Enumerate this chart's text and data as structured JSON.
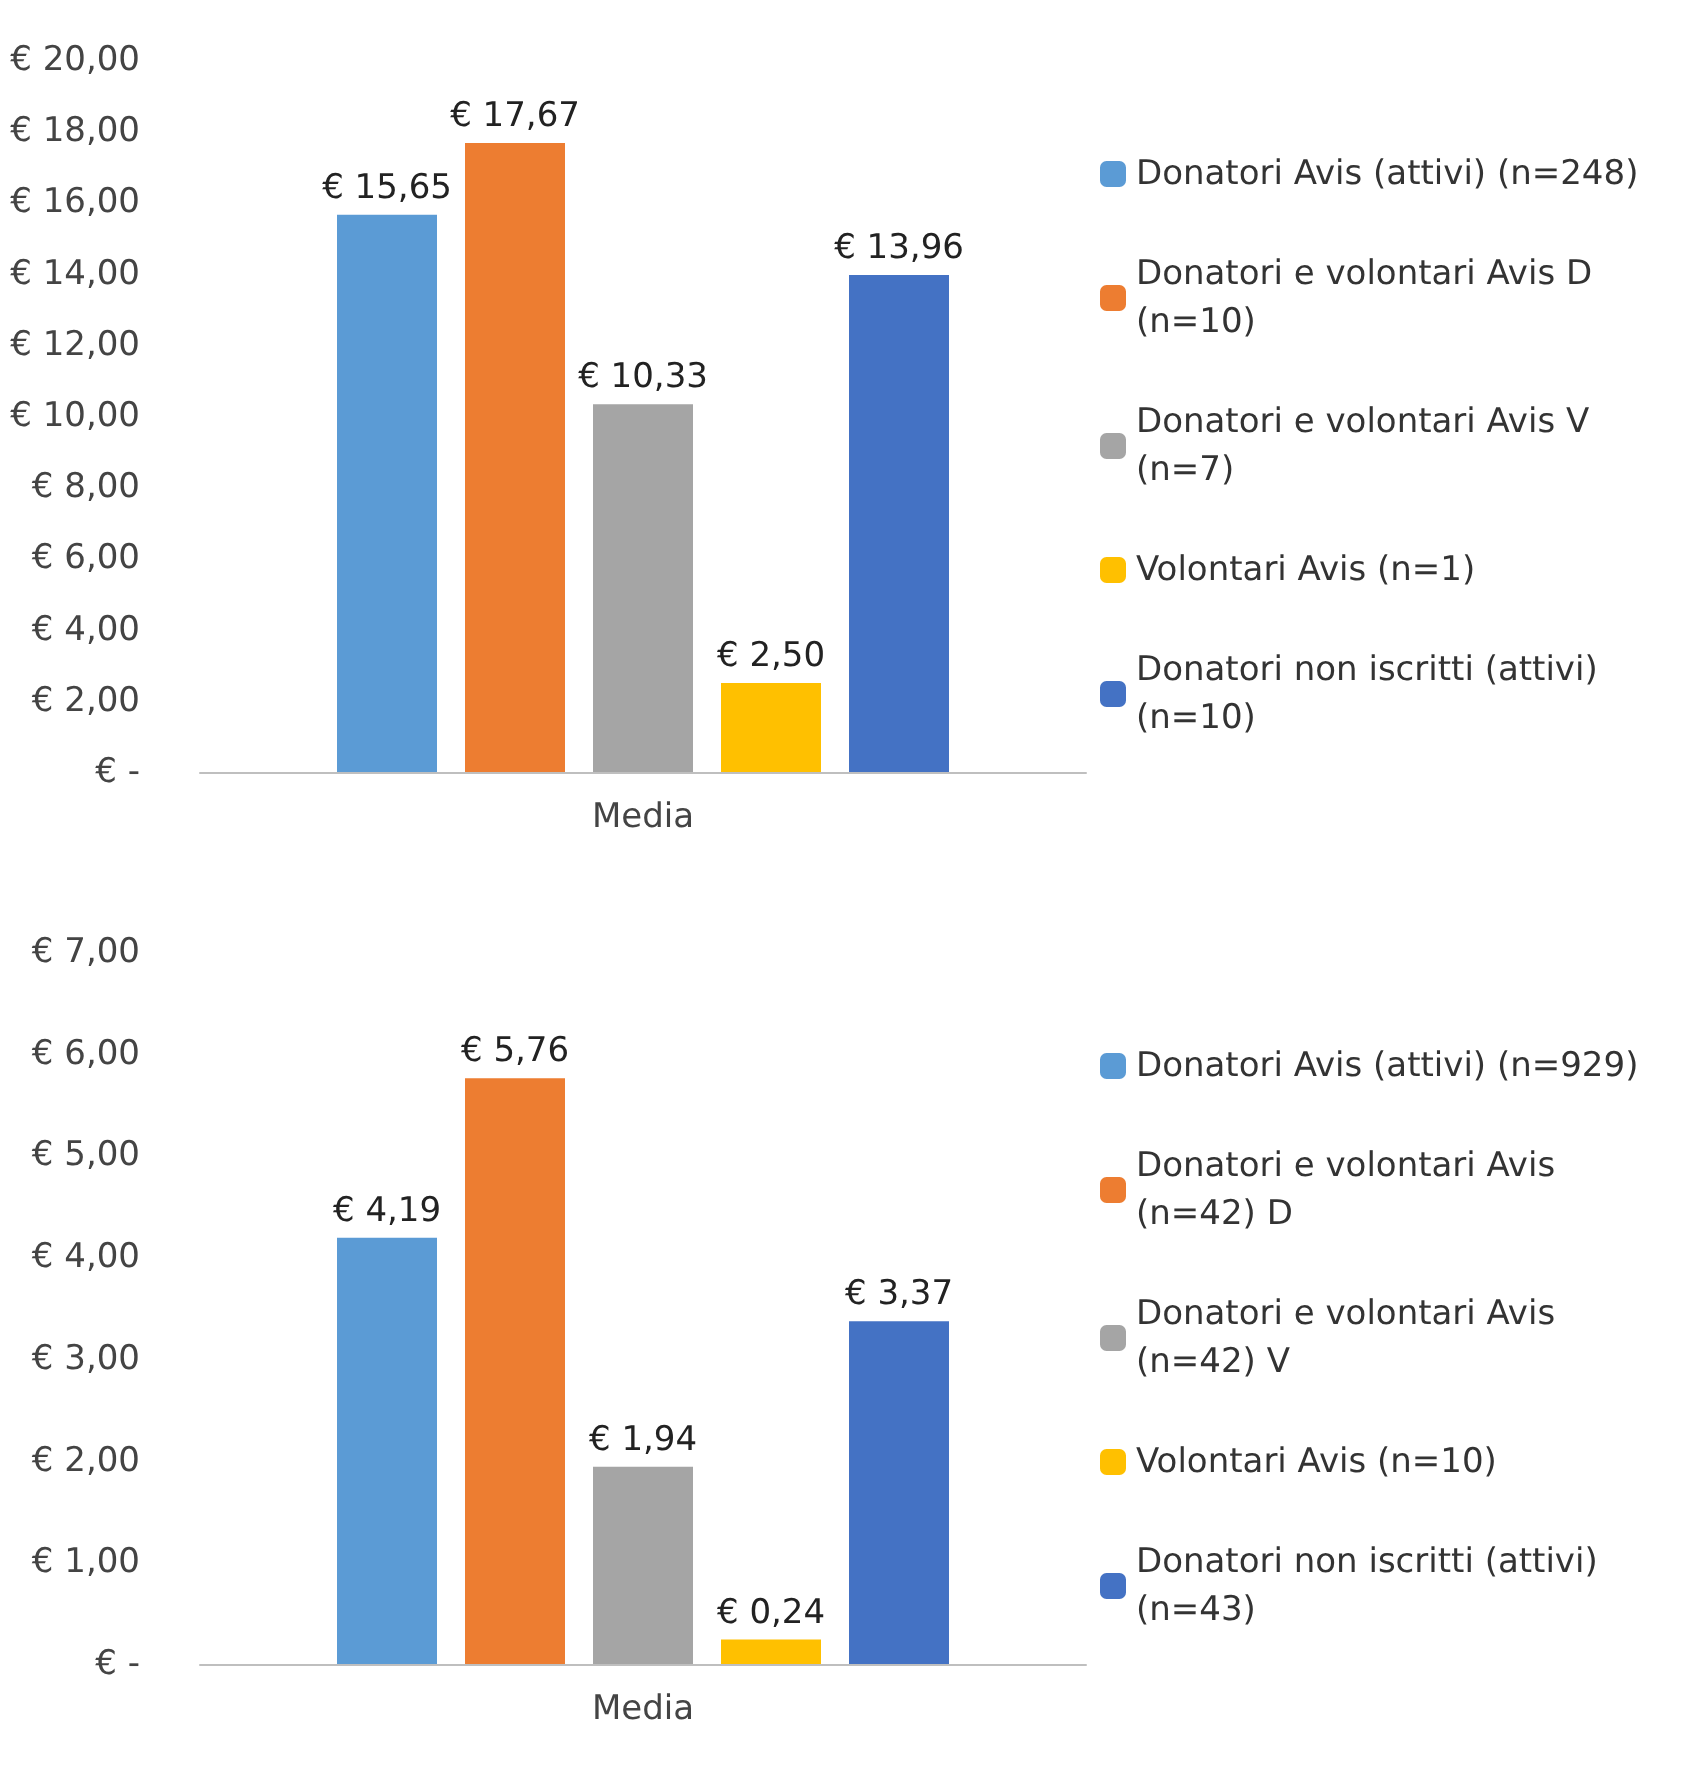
{
  "chart_data": [
    {
      "type": "bar",
      "categories": [
        "Media"
      ],
      "series": [
        {
          "name": "Donatori Avis (attivi) (n=248)",
          "color": "#5b9bd5",
          "values": [
            15.65
          ],
          "value_labels": [
            "€ 15,65"
          ]
        },
        {
          "name": "Donatori e volontari Avis D (n=10)",
          "color": "#ed7d31",
          "values": [
            17.67
          ],
          "value_labels": [
            "€ 17,67"
          ]
        },
        {
          "name": "Donatori e volontari Avis V (n=7)",
          "color": "#a5a5a5",
          "values": [
            10.33
          ],
          "value_labels": [
            "€ 10,33"
          ]
        },
        {
          "name": "Volontari Avis (n=1)",
          "color": "#ffc000",
          "values": [
            2.5
          ],
          "value_labels": [
            "€ 2,50"
          ]
        },
        {
          "name": "Donatori non iscritti (attivi) (n=10)",
          "color": "#4472c4",
          "values": [
            13.96
          ],
          "value_labels": [
            "€ 13,96"
          ]
        }
      ],
      "ylim": [
        0,
        20
      ],
      "yticks": [
        {
          "value": 0,
          "label": "€ -"
        },
        {
          "value": 2,
          "label": "€ 2,00"
        },
        {
          "value": 4,
          "label": "€ 4,00"
        },
        {
          "value": 6,
          "label": "€ 6,00"
        },
        {
          "value": 8,
          "label": "€ 8,00"
        },
        {
          "value": 10,
          "label": "€ 10,00"
        },
        {
          "value": 12,
          "label": "€ 12,00"
        },
        {
          "value": 14,
          "label": "€ 14,00"
        },
        {
          "value": 16,
          "label": "€ 16,00"
        },
        {
          "value": 18,
          "label": "€ 18,00"
        },
        {
          "value": 20,
          "label": "€ 20,00"
        }
      ],
      "legend": "right",
      "grid": false
    },
    {
      "type": "bar",
      "categories": [
        "Media"
      ],
      "series": [
        {
          "name": "Donatori Avis (attivi) (n=929)",
          "color": "#5b9bd5",
          "values": [
            4.19
          ],
          "value_labels": [
            "€ 4,19"
          ]
        },
        {
          "name": "Donatori e volontari Avis (n=42) D",
          "color": "#ed7d31",
          "values": [
            5.76
          ],
          "value_labels": [
            "€ 5,76"
          ]
        },
        {
          "name": "Donatori e volontari Avis (n=42) V",
          "color": "#a5a5a5",
          "values": [
            1.94
          ],
          "value_labels": [
            "€ 1,94"
          ]
        },
        {
          "name": "Volontari Avis (n=10)",
          "color": "#ffc000",
          "values": [
            0.24
          ],
          "value_labels": [
            "€ 0,24"
          ]
        },
        {
          "name": "Donatori non iscritti (attivi) (n=43)",
          "color": "#4472c4",
          "values": [
            3.37
          ],
          "value_labels": [
            "€ 3,37"
          ]
        }
      ],
      "ylim": [
        0,
        7
      ],
      "yticks": [
        {
          "value": 0,
          "label": "€ -"
        },
        {
          "value": 1,
          "label": "€ 1,00"
        },
        {
          "value": 2,
          "label": "€ 2,00"
        },
        {
          "value": 3,
          "label": "€ 3,00"
        },
        {
          "value": 4,
          "label": "€ 4,00"
        },
        {
          "value": 5,
          "label": "€ 5,00"
        },
        {
          "value": 6,
          "label": "€ 6,00"
        },
        {
          "value": 7,
          "label": "€ 7,00"
        }
      ],
      "legend": "right",
      "grid": false
    }
  ]
}
